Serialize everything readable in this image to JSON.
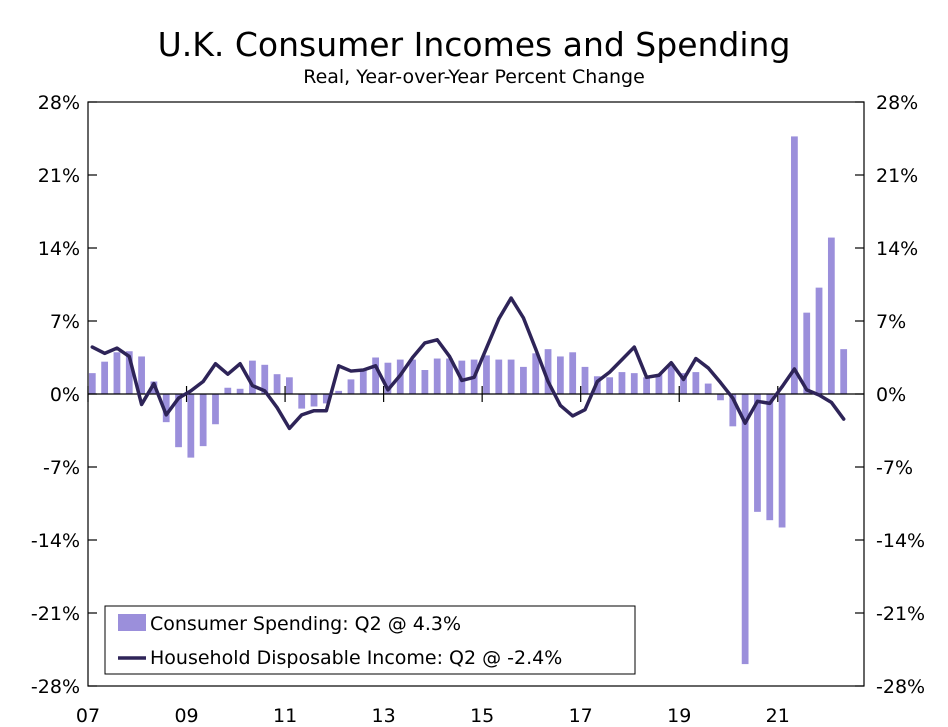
{
  "chart_data": {
    "type": "bar+line",
    "title": "U.K. Consumer Incomes and Spending",
    "subtitle": "Real, Year-over-Year Percent Change",
    "xlabel": "",
    "ylabel": "",
    "x_start": 2007.0,
    "x_end": 2022.75,
    "ylim": [
      -28,
      28
    ],
    "y_ticks": [
      28,
      21,
      14,
      7,
      0,
      -7,
      -14,
      -21,
      -28
    ],
    "y_tick_labels": [
      "28%",
      "21%",
      "14%",
      "7%",
      "0%",
      "-7%",
      "-14%",
      "-21%",
      "-28%"
    ],
    "x_tick_years": [
      2007,
      2009,
      2011,
      2013,
      2015,
      2017,
      2019,
      2021
    ],
    "x_tick_labels": [
      "07",
      "09",
      "11",
      "13",
      "15",
      "17",
      "19",
      "21"
    ],
    "grid": false,
    "legend_position": "bottom-left",
    "quarters_start": "2007 Q1",
    "series": [
      {
        "name": "Consumer Spending: Q2 @ 4.3%",
        "kind": "bar",
        "color": "#9b8fdb",
        "values": [
          2.0,
          3.1,
          4.0,
          4.1,
          3.6,
          1.2,
          -2.7,
          -5.1,
          -6.1,
          -5.0,
          -2.9,
          0.6,
          0.5,
          3.2,
          2.8,
          1.9,
          1.6,
          -1.4,
          -1.2,
          -0.9,
          0.3,
          1.4,
          2.3,
          3.5,
          3.0,
          3.3,
          3.3,
          2.3,
          3.4,
          3.4,
          3.2,
          3.3,
          3.7,
          3.3,
          3.3,
          2.6,
          3.9,
          4.3,
          3.6,
          4.0,
          2.6,
          1.7,
          1.6,
          2.1,
          2.0,
          1.6,
          1.9,
          2.8,
          2.0,
          2.1,
          1.0,
          -0.6,
          -3.1,
          -25.9,
          -11.3,
          -12.1,
          -12.8,
          24.7,
          7.8,
          10.2,
          15.0,
          4.3
        ]
      },
      {
        "name": "Household Disposable Income: Q2 @ -2.4%",
        "kind": "line",
        "color": "#2e2458",
        "values": [
          4.5,
          3.9,
          4.4,
          3.6,
          -1.0,
          1.0,
          -2.0,
          -0.4,
          0.3,
          1.2,
          2.9,
          1.9,
          2.9,
          0.8,
          0.3,
          -1.3,
          -3.3,
          -2.0,
          -1.6,
          -1.6,
          2.7,
          2.2,
          2.3,
          2.7,
          0.4,
          1.8,
          3.5,
          4.9,
          5.2,
          3.6,
          1.3,
          1.6,
          4.4,
          7.2,
          9.2,
          7.3,
          4.3,
          1.2,
          -1.1,
          -2.1,
          -1.5,
          1.2,
          2.1,
          3.3,
          4.5,
          1.6,
          1.8,
          3.0,
          1.4,
          3.4,
          2.5,
          1.1,
          -0.4,
          -2.8,
          -0.7,
          -0.9,
          0.7,
          2.4,
          0.4,
          -0.1,
          -0.8,
          -2.4
        ]
      }
    ]
  }
}
